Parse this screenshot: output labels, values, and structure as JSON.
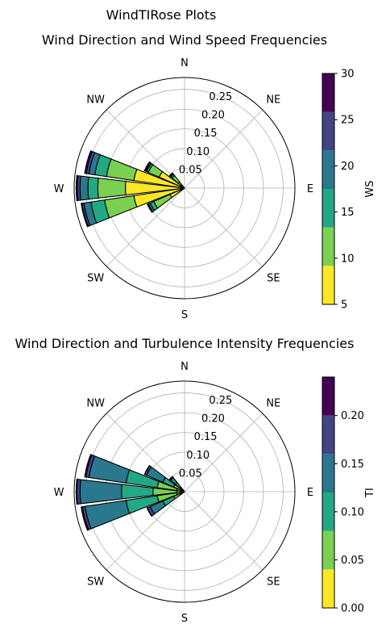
{
  "figure": {
    "suptitle": "WindTIRose Plots"
  },
  "colors": {
    "viridis6": [
      "#fde725",
      "#7ad151",
      "#22a884",
      "#2a788e",
      "#414487",
      "#440154"
    ],
    "grid": "#b0b0b0",
    "edge": "#000000"
  },
  "chart_data": [
    {
      "type": "windrose",
      "title": "Wind Direction and Wind Speed Frequencies",
      "directions": [
        "N",
        "NE",
        "E",
        "SE",
        "S",
        "SW",
        "W",
        "NW"
      ],
      "radial_ticks": [
        "0.05",
        "0.10",
        "0.15",
        "0.20",
        "0.25"
      ],
      "radial_tick_values": [
        0.05,
        0.1,
        0.15,
        0.2,
        0.25
      ],
      "rmax": 0.28,
      "colorbar": {
        "label": "WS",
        "ticks": [
          "5",
          "10",
          "15",
          "20",
          "25",
          "30"
        ],
        "range": [
          5,
          30
        ],
        "bins": 6
      },
      "sectors": [
        {
          "direction_deg": 240,
          "cumulative": [
            0.04,
            0.085,
            0.095,
            0.1,
            0.102,
            0.103
          ]
        },
        {
          "direction_deg": 255,
          "cumulative": [
            0.13,
            0.205,
            0.24,
            0.258,
            0.263,
            0.265
          ]
        },
        {
          "direction_deg": 270,
          "cumulative": [
            0.15,
            0.22,
            0.245,
            0.265,
            0.272,
            0.275
          ]
        },
        {
          "direction_deg": 285,
          "cumulative": [
            0.13,
            0.2,
            0.23,
            0.245,
            0.252,
            0.256
          ]
        },
        {
          "direction_deg": 300,
          "cumulative": [
            0.07,
            0.1,
            0.105,
            0.108,
            0.11,
            0.111
          ]
        },
        {
          "direction_deg": 315,
          "cumulative": [
            0.02,
            0.04,
            0.045,
            0.047,
            0.048,
            0.049
          ]
        }
      ]
    },
    {
      "type": "windrose",
      "title": "Wind Direction and Turbulence Intensity Frequencies",
      "directions": [
        "N",
        "NE",
        "E",
        "SE",
        "S",
        "SW",
        "W",
        "NW"
      ],
      "radial_ticks": [
        "0.05",
        "0.10",
        "0.15",
        "0.20",
        "0.25"
      ],
      "radial_tick_values": [
        0.05,
        0.1,
        0.15,
        0.2,
        0.25
      ],
      "rmax": 0.28,
      "colorbar": {
        "label": "TI",
        "ticks": [
          "0.00",
          "0.05",
          "0.10",
          "0.15",
          "0.20"
        ],
        "range": [
          0.0,
          0.24
        ],
        "bins": 6
      },
      "sectors": [
        {
          "direction_deg": 240,
          "cumulative": [
            0.01,
            0.03,
            0.06,
            0.095,
            0.103,
            0.104
          ]
        },
        {
          "direction_deg": 255,
          "cumulative": [
            0.02,
            0.07,
            0.15,
            0.255,
            0.262,
            0.265
          ]
        },
        {
          "direction_deg": 270,
          "cumulative": [
            0.02,
            0.08,
            0.16,
            0.265,
            0.273,
            0.275
          ]
        },
        {
          "direction_deg": 285,
          "cumulative": [
            0.02,
            0.07,
            0.15,
            0.245,
            0.253,
            0.256
          ]
        },
        {
          "direction_deg": 300,
          "cumulative": [
            0.01,
            0.03,
            0.06,
            0.105,
            0.11,
            0.111
          ]
        },
        {
          "direction_deg": 315,
          "cumulative": [
            0.005,
            0.015,
            0.03,
            0.046,
            0.048,
            0.049
          ]
        }
      ]
    }
  ]
}
